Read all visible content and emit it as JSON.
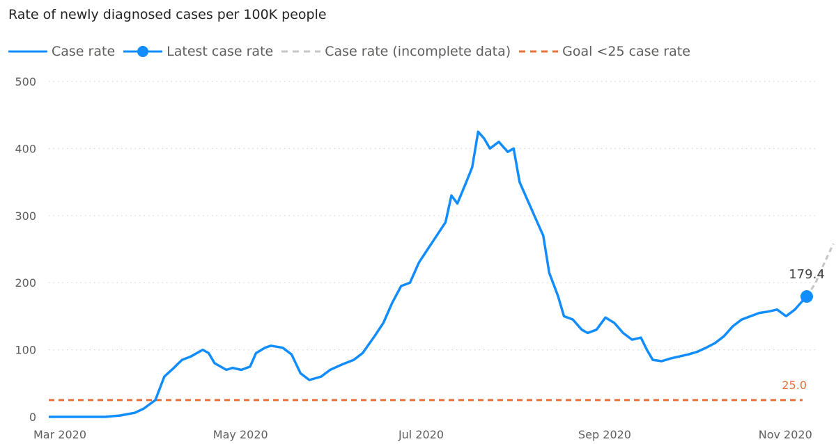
{
  "title": "Rate of newly diagnosed cases per 100K people",
  "legend": [
    {
      "label": "Case rate",
      "kind": "line",
      "color": "#118dff"
    },
    {
      "label": "Latest case rate",
      "kind": "marker",
      "color": "#118dff"
    },
    {
      "label": "Case rate (incomplete data)",
      "kind": "dash",
      "color": "#c8c6c4"
    },
    {
      "label": "Goal <25 case rate",
      "kind": "dash",
      "color": "#e8703a"
    }
  ],
  "chart_data": {
    "type": "line",
    "title": "Rate of newly diagnosed cases per 100K people",
    "xlabel": "",
    "ylabel": "",
    "ylim": [
      0,
      500
    ],
    "yticks": [
      "0",
      "100",
      "200",
      "300",
      "400",
      "500"
    ],
    "xticks": [
      {
        "label": "Mar 2020",
        "date": "2020-03-01"
      },
      {
        "label": "May 2020",
        "date": "2020-05-01"
      },
      {
        "label": "Jul 2020",
        "date": "2020-07-01"
      },
      {
        "label": "Sep 2020",
        "date": "2020-09-01"
      },
      {
        "label": "Nov 2020",
        "date": "2020-11-01"
      }
    ],
    "grid": true,
    "legend_position": "top-left",
    "series": [
      {
        "name": "Case rate",
        "color": "#118dff",
        "points": [
          [
            "2020-03-01",
            0
          ],
          [
            "2020-03-10",
            0
          ],
          [
            "2020-03-20",
            0
          ],
          [
            "2020-03-25",
            2
          ],
          [
            "2020-03-30",
            6
          ],
          [
            "2020-04-02",
            12
          ],
          [
            "2020-04-06",
            25
          ],
          [
            "2020-04-09",
            60
          ],
          [
            "2020-04-12",
            72
          ],
          [
            "2020-04-15",
            85
          ],
          [
            "2020-04-18",
            90
          ],
          [
            "2020-04-22",
            100
          ],
          [
            "2020-04-24",
            95
          ],
          [
            "2020-04-26",
            80
          ],
          [
            "2020-04-30",
            70
          ],
          [
            "2020-05-02",
            73
          ],
          [
            "2020-05-05",
            70
          ],
          [
            "2020-05-08",
            75
          ],
          [
            "2020-05-10",
            95
          ],
          [
            "2020-05-13",
            103
          ],
          [
            "2020-05-15",
            106
          ],
          [
            "2020-05-19",
            103
          ],
          [
            "2020-05-22",
            93
          ],
          [
            "2020-05-25",
            65
          ],
          [
            "2020-05-28",
            55
          ],
          [
            "2020-06-01",
            60
          ],
          [
            "2020-06-04",
            70
          ],
          [
            "2020-06-08",
            78
          ],
          [
            "2020-06-12",
            85
          ],
          [
            "2020-06-15",
            95
          ],
          [
            "2020-06-19",
            120
          ],
          [
            "2020-06-22",
            140
          ],
          [
            "2020-06-25",
            170
          ],
          [
            "2020-06-28",
            195
          ],
          [
            "2020-07-01",
            200
          ],
          [
            "2020-07-04",
            230
          ],
          [
            "2020-07-07",
            250
          ],
          [
            "2020-07-10",
            270
          ],
          [
            "2020-07-13",
            290
          ],
          [
            "2020-07-15",
            330
          ],
          [
            "2020-07-17",
            318
          ],
          [
            "2020-07-20",
            350
          ],
          [
            "2020-07-22",
            372
          ],
          [
            "2020-07-24",
            425
          ],
          [
            "2020-07-26",
            415
          ],
          [
            "2020-07-28",
            400
          ],
          [
            "2020-07-31",
            410
          ],
          [
            "2020-08-03",
            395
          ],
          [
            "2020-08-05",
            400
          ],
          [
            "2020-08-07",
            350
          ],
          [
            "2020-08-10",
            320
          ],
          [
            "2020-08-12",
            300
          ],
          [
            "2020-08-15",
            270
          ],
          [
            "2020-08-17",
            215
          ],
          [
            "2020-08-20",
            180
          ],
          [
            "2020-08-22",
            150
          ],
          [
            "2020-08-25",
            145
          ],
          [
            "2020-08-28",
            130
          ],
          [
            "2020-08-30",
            125
          ],
          [
            "2020-09-02",
            130
          ],
          [
            "2020-09-05",
            148
          ],
          [
            "2020-09-08",
            140
          ],
          [
            "2020-09-11",
            125
          ],
          [
            "2020-09-14",
            115
          ],
          [
            "2020-09-17",
            118
          ],
          [
            "2020-09-19",
            100
          ],
          [
            "2020-09-21",
            85
          ],
          [
            "2020-09-24",
            83
          ],
          [
            "2020-09-27",
            87
          ],
          [
            "2020-09-30",
            90
          ],
          [
            "2020-10-03",
            93
          ],
          [
            "2020-10-06",
            97
          ],
          [
            "2020-10-09",
            103
          ],
          [
            "2020-10-12",
            110
          ],
          [
            "2020-10-15",
            120
          ],
          [
            "2020-10-18",
            135
          ],
          [
            "2020-10-21",
            145
          ],
          [
            "2020-10-24",
            150
          ],
          [
            "2020-10-27",
            155
          ],
          [
            "2020-10-30",
            157
          ],
          [
            "2020-11-02",
            160
          ],
          [
            "2020-11-05",
            150
          ],
          [
            "2020-11-08",
            160
          ],
          [
            "2020-11-10",
            170
          ],
          [
            "2020-11-12",
            179.4
          ]
        ]
      },
      {
        "name": "Case rate (incomplete data)",
        "color": "#c8c6c4",
        "points": [
          [
            "2020-11-12",
            179.4
          ],
          [
            "2020-11-15",
            200
          ],
          [
            "2020-11-18",
            230
          ],
          [
            "2020-11-21",
            258
          ]
        ]
      },
      {
        "name": "Goal <25 case rate",
        "color": "#e8703a",
        "points": [
          [
            "2020-03-01",
            25
          ],
          [
            "2020-11-21",
            25
          ]
        ]
      }
    ],
    "latest_point": {
      "name": "Latest case rate",
      "date": "2020-11-12",
      "value": 179.4,
      "label": "179.4"
    },
    "goal_label": "25.0"
  }
}
